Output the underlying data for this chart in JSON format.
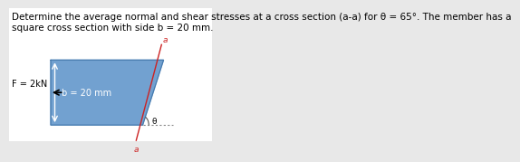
{
  "title_line1": "Determine the average normal and shear stresses at a cross section (a-a) for θ = 65°. The member has a",
  "title_line2": "square cross section with side b = 20 mm.",
  "background_color": "#e8e8e8",
  "panel_color": "#ffffff",
  "bar_color": "#6699cc",
  "force_label": "F = 2kN",
  "dim_label": "b = 20 mm",
  "angle_label": "θ",
  "section_label": "a",
  "theta_deg": 65,
  "cut_line_color": "#cc2222",
  "dot_line_color": "#888888",
  "font_size_title": 7.5,
  "font_size_labels": 7,
  "font_size_small": 6.5
}
